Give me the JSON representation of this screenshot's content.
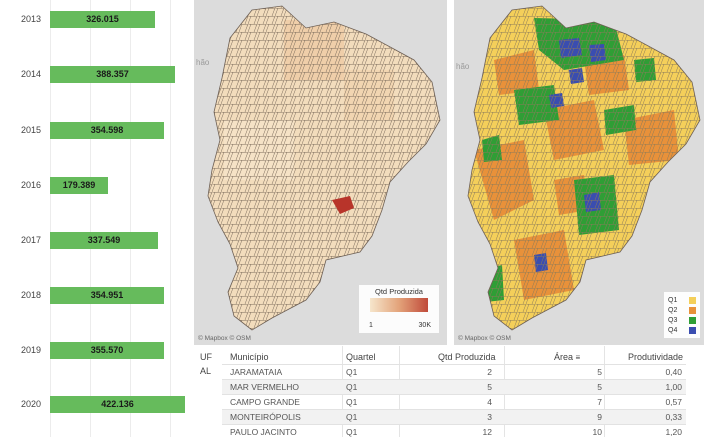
{
  "chart_data": {
    "type": "bar",
    "orientation": "horizontal",
    "categories": [
      "2013",
      "2014",
      "2015",
      "2016",
      "2017",
      "2018",
      "2019",
      "2020"
    ],
    "values": [
      326015,
      388357,
      354598,
      179389,
      337549,
      354951,
      355570,
      422136
    ],
    "value_labels": [
      "326.015",
      "388.357",
      "354.598",
      "179.389",
      "337.549",
      "354.951",
      "355.570",
      "422.136"
    ],
    "bar_color": "#66bb5c"
  },
  "maps": {
    "attribution": "© Mapbox  © OSM",
    "place_label": "hão",
    "legend_title": "Qtd Produzida",
    "legend_min": "1",
    "legend_max": "30K",
    "quartiles": [
      {
        "label": "Q1",
        "color": "#f4cf5a"
      },
      {
        "label": "Q2",
        "color": "#e8913a"
      },
      {
        "label": "Q3",
        "color": "#2f9e35"
      },
      {
        "label": "Q4",
        "color": "#3a4db0"
      }
    ]
  },
  "table": {
    "headers": [
      "UF",
      "Município",
      "Quartel",
      "Qtd Produzida",
      "Área",
      "Produtividade"
    ],
    "uf": "AL",
    "rows": [
      {
        "municipio": "JARAMATAIA",
        "quartel": "Q1",
        "qtd": "2",
        "area": "5",
        "produtividade": "0,40"
      },
      {
        "municipio": "MAR VERMELHO",
        "quartel": "Q1",
        "qtd": "5",
        "area": "5",
        "produtividade": "1,00"
      },
      {
        "municipio": "CAMPO GRANDE",
        "quartel": "Q1",
        "qtd": "4",
        "area": "7",
        "produtividade": "0,57"
      },
      {
        "municipio": "MONTEIRÓPOLIS",
        "quartel": "Q1",
        "qtd": "3",
        "area": "9",
        "produtividade": "0,33"
      },
      {
        "municipio": "PAULO JACINTO",
        "quartel": "Q1",
        "qtd": "12",
        "area": "10",
        "produtividade": "1,20"
      }
    ]
  }
}
